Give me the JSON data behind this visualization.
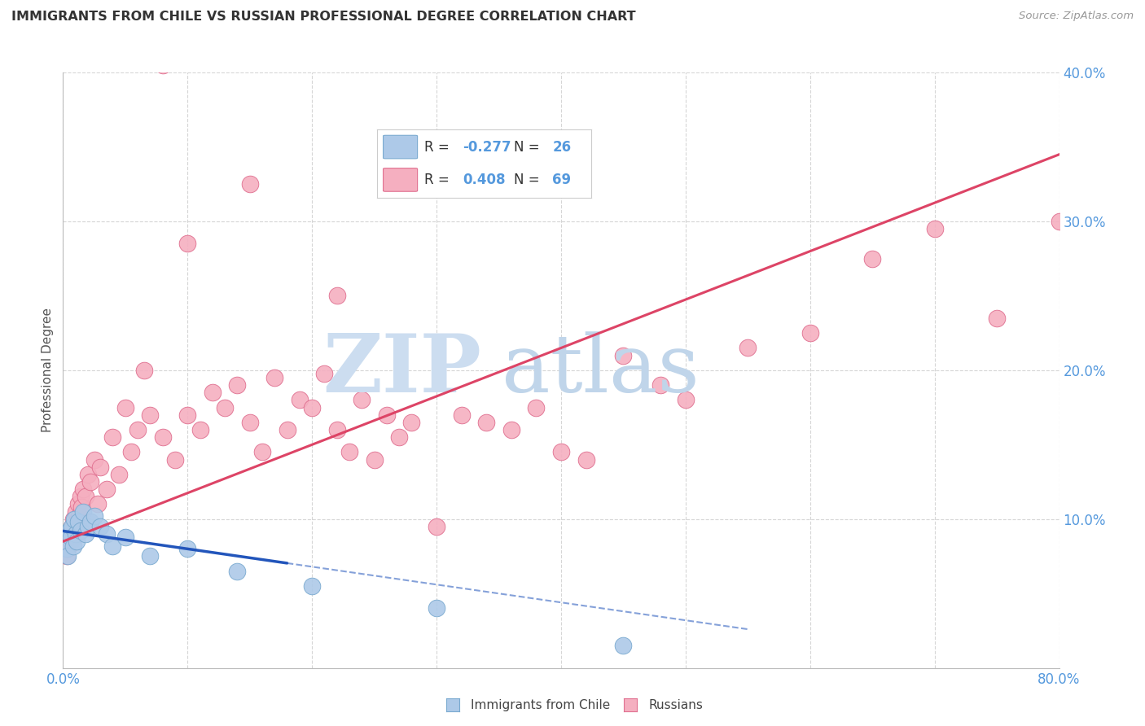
{
  "title": "IMMIGRANTS FROM CHILE VS RUSSIAN PROFESSIONAL DEGREE CORRELATION CHART",
  "source": "Source: ZipAtlas.com",
  "ylabel": "Professional Degree",
  "xlim": [
    0,
    80
  ],
  "ylim": [
    0,
    40
  ],
  "xticks": [
    0,
    10,
    20,
    30,
    40,
    50,
    60,
    70,
    80
  ],
  "yticks": [
    0,
    10,
    20,
    30,
    40
  ],
  "chile_color": "#adc9e8",
  "russia_color": "#f5afc0",
  "chile_edge_color": "#7aaad0",
  "russia_edge_color": "#e07090",
  "chile_line_color": "#2255bb",
  "russia_line_color": "#dd4466",
  "watermark_zip_color": "#ccddf0",
  "watermark_atlas_color": "#c0d5ea",
  "tick_label_color": "#5599dd",
  "chile_x": [
    0.3,
    0.4,
    0.5,
    0.6,
    0.7,
    0.8,
    0.9,
    1.0,
    1.1,
    1.2,
    1.4,
    1.6,
    1.8,
    2.0,
    2.2,
    2.5,
    3.0,
    3.5,
    4.0,
    5.0,
    7.0,
    10.0,
    14.0,
    20.0,
    30.0,
    45.0
  ],
  "chile_y": [
    8.0,
    7.5,
    9.2,
    8.8,
    9.5,
    8.2,
    10.0,
    9.0,
    8.5,
    9.8,
    9.2,
    10.5,
    9.0,
    9.5,
    9.8,
    10.2,
    9.5,
    9.0,
    8.2,
    8.8,
    7.5,
    8.0,
    6.5,
    5.5,
    4.0,
    1.5
  ],
  "russia_x": [
    0.3,
    0.4,
    0.5,
    0.6,
    0.7,
    0.8,
    0.9,
    1.0,
    1.1,
    1.2,
    1.3,
    1.4,
    1.5,
    1.6,
    1.8,
    2.0,
    2.2,
    2.5,
    2.8,
    3.0,
    3.5,
    4.0,
    4.5,
    5.0,
    5.5,
    6.0,
    6.5,
    7.0,
    8.0,
    9.0,
    10.0,
    11.0,
    12.0,
    13.0,
    14.0,
    15.0,
    16.0,
    17.0,
    18.0,
    19.0,
    20.0,
    21.0,
    22.0,
    23.0,
    24.0,
    25.0,
    26.0,
    27.0,
    28.0,
    30.0,
    32.0,
    34.0,
    36.0,
    38.0,
    40.0,
    42.0,
    45.0,
    48.0,
    50.0,
    55.0,
    60.0,
    65.0,
    70.0,
    75.0,
    80.0,
    22.0,
    15.0,
    10.0,
    8.0
  ],
  "russia_y": [
    7.5,
    8.0,
    9.0,
    8.5,
    9.5,
    10.0,
    8.8,
    10.5,
    9.2,
    11.0,
    10.2,
    11.5,
    10.8,
    12.0,
    11.5,
    13.0,
    12.5,
    14.0,
    11.0,
    13.5,
    12.0,
    15.5,
    13.0,
    17.5,
    14.5,
    16.0,
    20.0,
    17.0,
    15.5,
    14.0,
    17.0,
    16.0,
    18.5,
    17.5,
    19.0,
    16.5,
    14.5,
    19.5,
    16.0,
    18.0,
    17.5,
    19.8,
    16.0,
    14.5,
    18.0,
    14.0,
    17.0,
    15.5,
    16.5,
    9.5,
    17.0,
    16.5,
    16.0,
    17.5,
    14.5,
    14.0,
    21.0,
    19.0,
    18.0,
    21.5,
    22.5,
    27.5,
    29.5,
    23.5,
    30.0,
    25.0,
    32.5,
    28.5,
    40.5
  ]
}
